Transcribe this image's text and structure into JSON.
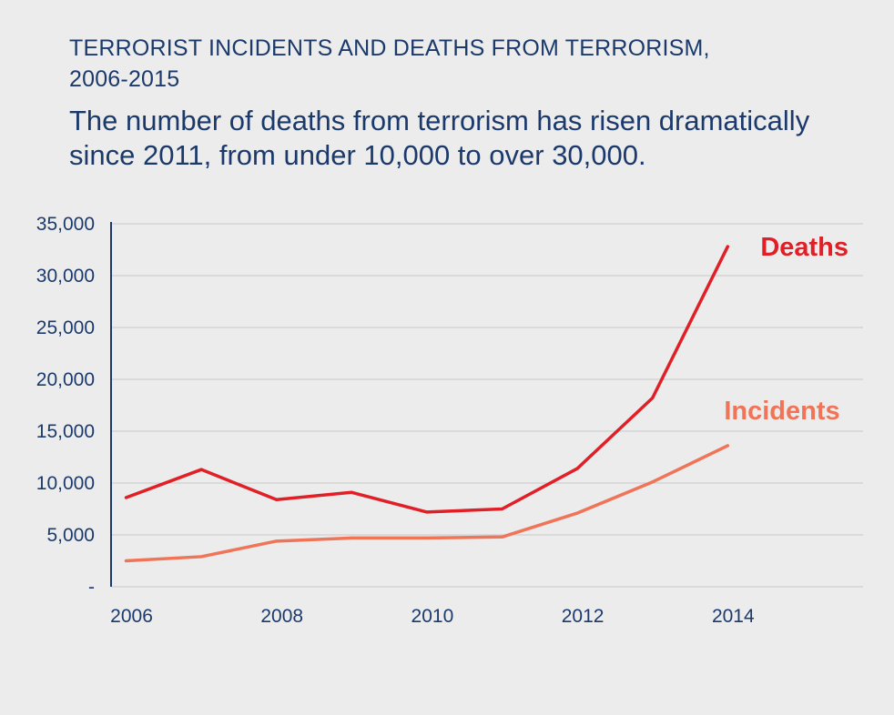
{
  "header": {
    "title_line1": "TERRORIST INCIDENTS AND DEATHS FROM TERRORISM,",
    "title_line2": "2006-2015",
    "subtitle_line1": "The number of deaths from terrorism has risen dramatically",
    "subtitle_line2": "since 2011, from under 10,000 to over 30,000."
  },
  "colors": {
    "background": "#ececec",
    "text": "#1b3a6b",
    "axis": "#1b3a6b",
    "grid": "#c8c8c8",
    "deaths": "#e01f26",
    "incidents": "#ef7458"
  },
  "chart_data": {
    "type": "line",
    "title": "TERRORIST INCIDENTS AND DEATHS FROM TERRORISM, 2006-2015",
    "subtitle": "The number of deaths from terrorism has risen dramatically since 2011, from under 10,000 to over 30,000.",
    "x": [
      2006,
      2007,
      2008,
      2009,
      2010,
      2011,
      2012,
      2013,
      2014
    ],
    "x_tick_values": [
      2006,
      2008,
      2010,
      2012,
      2014
    ],
    "x_tick_labels": [
      "2006",
      "2008",
      "2010",
      "2012",
      "2014"
    ],
    "xlim": [
      2005.8,
      2015.8
    ],
    "ylim": [
      0,
      35000
    ],
    "y_tick_values": [
      0,
      5000,
      10000,
      15000,
      20000,
      25000,
      30000,
      35000
    ],
    "y_tick_labels": [
      "-",
      "5,000",
      "10,000",
      "15,000",
      "20,000",
      "25,000",
      "30,000",
      "35,000"
    ],
    "grid": "horizontal",
    "series": [
      {
        "name": "Deaths",
        "values": [
          8600,
          11300,
          8400,
          9100,
          7200,
          7500,
          11400,
          18200,
          32800
        ]
      },
      {
        "name": "Incidents",
        "values": [
          2500,
          2900,
          4400,
          4700,
          4700,
          4800,
          7100,
          10100,
          13600
        ]
      }
    ]
  }
}
